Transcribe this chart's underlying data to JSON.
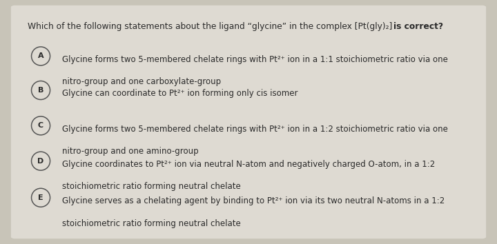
{
  "outer_bg": "#c8c4b8",
  "card_bg": "#dedad2",
  "text_color": "#2a2a2a",
  "circle_edge_color": "#555555",
  "title_normal": "Which of the following statements about the ligand “glycine” in the complex [Pt(gly)₂] ",
  "title_bold": "is correct?",
  "title_fontsize": 8.8,
  "option_fontsize": 8.5,
  "options": [
    {
      "label": "A",
      "line1": "Glycine forms two 5-membered chelate rings with Pt²⁺ ion in a 1:1 stoichiometric ratio via one",
      "line2": "nitro-group and one carboxylate-group"
    },
    {
      "label": "B",
      "line1": "Glycine can coordinate to Pt²⁺ ion forming only cis isomer",
      "line2": null
    },
    {
      "label": "C",
      "line1": "Glycine forms two 5-membered chelate rings with Pt²⁺ ion in a 1:2 stoichiometric ratio via one",
      "line2": "nitro-group and one amino-group"
    },
    {
      "label": "D",
      "line1": "Glycine coordinates to Pt²⁺ ion via neutral N-atom and negatively charged O-atom, in a 1:2",
      "line2": "stoichiometric ratio forming neutral chelate"
    },
    {
      "label": "E",
      "line1": "Glycine serves as a chelating agent by binding to Pt²⁺ ion via its two neutral N-atoms in a 1:2",
      "line2": "stoichiometric ratio forming neutral chelate"
    }
  ]
}
